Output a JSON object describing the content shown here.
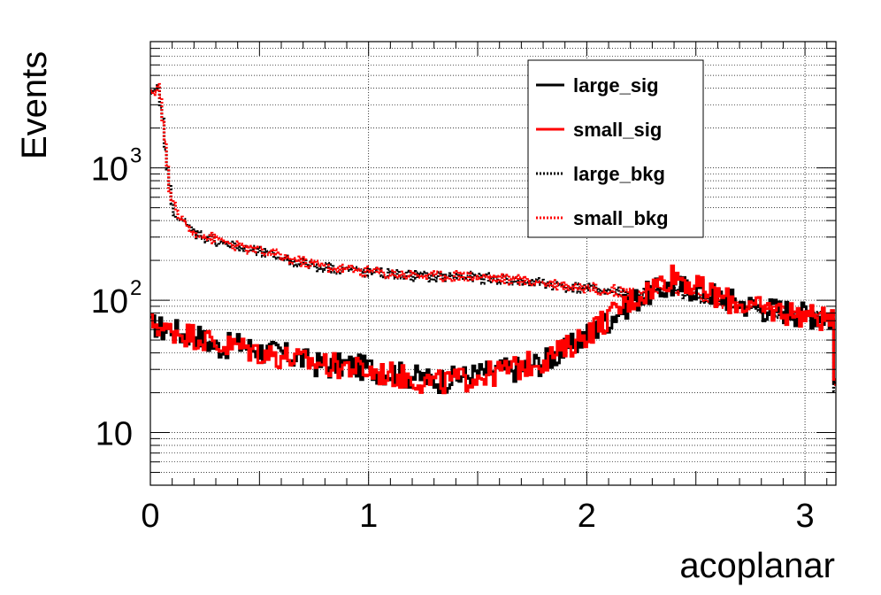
{
  "chart_data": {
    "type": "line",
    "xlabel": "acoplanar",
    "ylabel": "Events",
    "xlim": [
      0,
      3.1416
    ],
    "ylim": [
      4,
      9000
    ],
    "yscale": "log",
    "grid": true,
    "legend_position": "top-right",
    "x_ticks": [
      "0",
      "1",
      "2",
      "3"
    ],
    "y_ticks": [
      {
        "value": 10,
        "base": "10",
        "exp": ""
      },
      {
        "value": 100,
        "base": "10",
        "exp": "2"
      },
      {
        "value": 1000,
        "base": "10",
        "exp": "3"
      }
    ],
    "series": [
      {
        "name": "large_sig",
        "color": "#000000",
        "style": "solid",
        "x": [
          0.0,
          0.03,
          0.06,
          0.1,
          0.15,
          0.2,
          0.25,
          0.3,
          0.4,
          0.5,
          0.6,
          0.7,
          0.8,
          0.9,
          1.0,
          1.1,
          1.2,
          1.3,
          1.4,
          1.5,
          1.6,
          1.7,
          1.8,
          1.9,
          2.0,
          2.1,
          2.2,
          2.3,
          2.4,
          2.5,
          2.6,
          2.7,
          2.8,
          2.9,
          3.0,
          3.1,
          3.13,
          3.14
        ],
        "values": [
          63,
          66,
          60,
          62,
          55,
          58,
          50,
          45,
          47,
          42,
          40,
          36,
          32,
          33,
          31,
          29,
          27,
          25,
          26,
          28,
          30,
          31,
          35,
          42,
          55,
          72,
          98,
          118,
          128,
          125,
          110,
          97,
          88,
          85,
          80,
          75,
          70,
          12
        ]
      },
      {
        "name": "small_sig",
        "color": "#ff0000",
        "style": "solid",
        "x": [
          0.0,
          0.03,
          0.06,
          0.1,
          0.15,
          0.2,
          0.25,
          0.3,
          0.4,
          0.5,
          0.6,
          0.7,
          0.8,
          0.9,
          1.0,
          1.1,
          1.2,
          1.3,
          1.4,
          1.5,
          1.6,
          1.7,
          1.8,
          1.9,
          2.0,
          2.1,
          2.2,
          2.3,
          2.4,
          2.5,
          2.6,
          2.7,
          2.8,
          2.9,
          3.0,
          3.1,
          3.13,
          3.14
        ],
        "values": [
          66,
          68,
          58,
          60,
          57,
          55,
          52,
          46,
          45,
          41,
          38,
          35,
          33,
          32,
          29,
          28,
          26,
          24,
          25,
          27,
          29,
          32,
          36,
          43,
          57,
          75,
          100,
          125,
          160,
          128,
          108,
          95,
          86,
          83,
          78,
          73,
          68,
          11
        ]
      },
      {
        "name": "large_bkg",
        "color": "#000000",
        "style": "dotted",
        "x": [
          0.0,
          0.02,
          0.04,
          0.06,
          0.08,
          0.1,
          0.13,
          0.16,
          0.2,
          0.25,
          0.3,
          0.4,
          0.5,
          0.6,
          0.7,
          0.8,
          0.9,
          1.0,
          1.1,
          1.2,
          1.3,
          1.4,
          1.5,
          1.6,
          1.7,
          1.8,
          1.9,
          2.0,
          2.1,
          2.2,
          2.3,
          2.4,
          2.5,
          2.6,
          2.7,
          2.8,
          2.9,
          3.0,
          3.1,
          3.13,
          3.14
        ],
        "values": [
          3300,
          3700,
          4000,
          2000,
          900,
          520,
          420,
          370,
          330,
          300,
          285,
          250,
          230,
          210,
          190,
          178,
          170,
          162,
          158,
          154,
          150,
          152,
          148,
          145,
          138,
          135,
          128,
          122,
          118,
          113,
          115,
          120,
          108,
          96,
          90,
          84,
          80,
          77,
          74,
          70,
          11
        ]
      },
      {
        "name": "small_bkg",
        "color": "#ff0000",
        "style": "dotted",
        "x": [
          0.0,
          0.02,
          0.04,
          0.06,
          0.08,
          0.1,
          0.13,
          0.16,
          0.2,
          0.25,
          0.3,
          0.4,
          0.5,
          0.6,
          0.7,
          0.8,
          0.9,
          1.0,
          1.1,
          1.2,
          1.3,
          1.4,
          1.5,
          1.6,
          1.7,
          1.8,
          1.9,
          2.0,
          2.1,
          2.2,
          2.3,
          2.4,
          2.5,
          2.6,
          2.7,
          2.8,
          2.9,
          3.0,
          3.1,
          3.13,
          3.14
        ],
        "values": [
          3400,
          3900,
          4300,
          2100,
          950,
          540,
          430,
          380,
          335,
          305,
          290,
          255,
          235,
          215,
          195,
          180,
          172,
          165,
          160,
          156,
          152,
          155,
          150,
          147,
          140,
          137,
          130,
          125,
          120,
          116,
          117,
          122,
          110,
          98,
          92,
          86,
          82,
          79,
          76,
          72,
          12
        ]
      }
    ]
  }
}
